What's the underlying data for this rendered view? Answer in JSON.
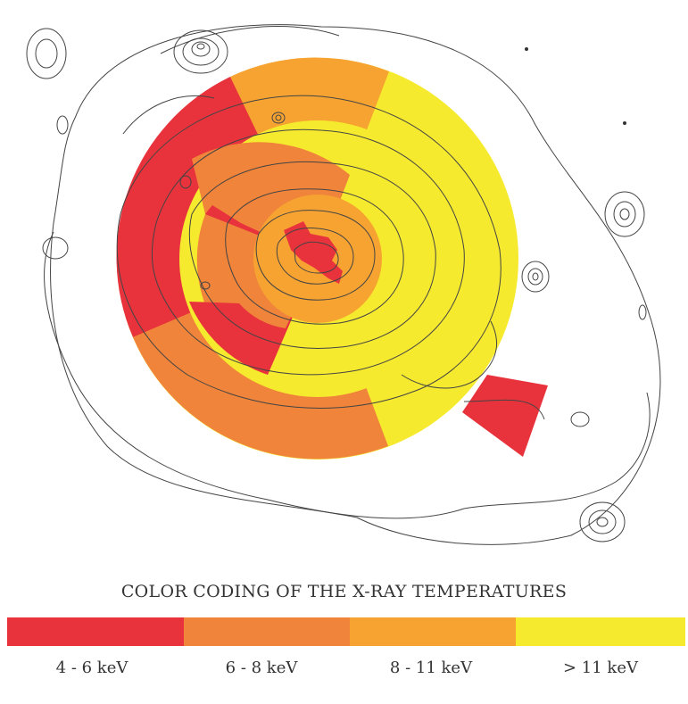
{
  "legend": {
    "title": "COLOR CODING OF THE X-RAY TEMPERATURES",
    "bins": [
      {
        "label": "4 - 6 keV",
        "color": "#e8333c"
      },
      {
        "label": "6 - 8 keV",
        "color": "#f0843a"
      },
      {
        "label": "8 - 11 keV",
        "color": "#f6a331"
      },
      {
        "label": "> 11 keV",
        "color": "#f6ea2e"
      }
    ]
  },
  "colors": {
    "contour": "#444444",
    "background": "#ffffff"
  }
}
